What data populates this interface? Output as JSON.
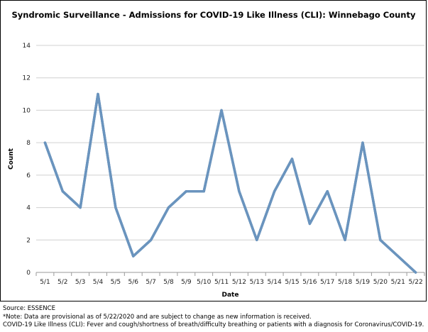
{
  "chart_data": {
    "type": "line",
    "title": "Syndromic Surveillance - Admissions for COVID-19 Like Illness (CLI): Winnebago County",
    "xlabel": "Date",
    "ylabel": "Count",
    "categories": [
      "5/1",
      "5/2",
      "5/3",
      "5/4",
      "5/5",
      "5/6",
      "5/7",
      "5/8",
      "5/9",
      "5/10",
      "5/11",
      "5/12",
      "5/13",
      "5/14",
      "5/15",
      "5/16",
      "5/17",
      "5/18",
      "5/19",
      "5/20",
      "5/21",
      "5/22"
    ],
    "series": [
      {
        "values": [
          8,
          5,
          4,
          11,
          4,
          1,
          2,
          4,
          5,
          5,
          10,
          5,
          2,
          5,
          7,
          3,
          5,
          2,
          8,
          2,
          1,
          0
        ]
      }
    ],
    "ylim": [
      0,
      14
    ],
    "yticks": [
      0,
      2,
      4,
      6,
      8,
      10,
      12,
      14
    ],
    "grid": true,
    "legend": "none",
    "colors": {
      "line": "#6a94be",
      "line_edge": "#4a76a6"
    }
  },
  "notes": {
    "source": "Source: ESSENCE",
    "provisional": "*Note: Data are provisional as of 5/22/2020 and are subject to change as new information is received.",
    "definition": "COVID-19 Like Illness (CLI): Fever and cough/shortness of breath/difficulty breathing or patients with a diagnosis for Coronavirus/COVID-19."
  }
}
